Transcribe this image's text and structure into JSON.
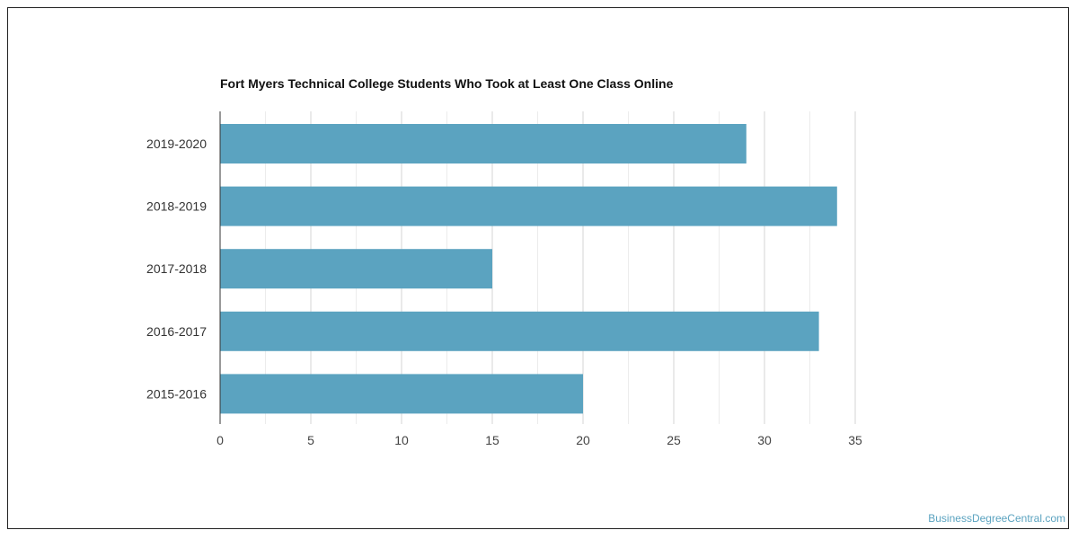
{
  "chart_data": {
    "type": "bar",
    "orientation": "horizontal",
    "title": "Fort Myers Technical College Students Who Took at Least One Class Online",
    "categories": [
      "2019-2020",
      "2018-2019",
      "2017-2018",
      "2016-2017",
      "2015-2016"
    ],
    "values": [
      29,
      34,
      15,
      33,
      20
    ],
    "xlim": [
      0,
      35
    ],
    "xticks": [
      0,
      5,
      10,
      15,
      20,
      25,
      30,
      35
    ],
    "grid": true,
    "bar_color": "#5ba3c0"
  },
  "credit": "BusinessDegreeCentral.com"
}
